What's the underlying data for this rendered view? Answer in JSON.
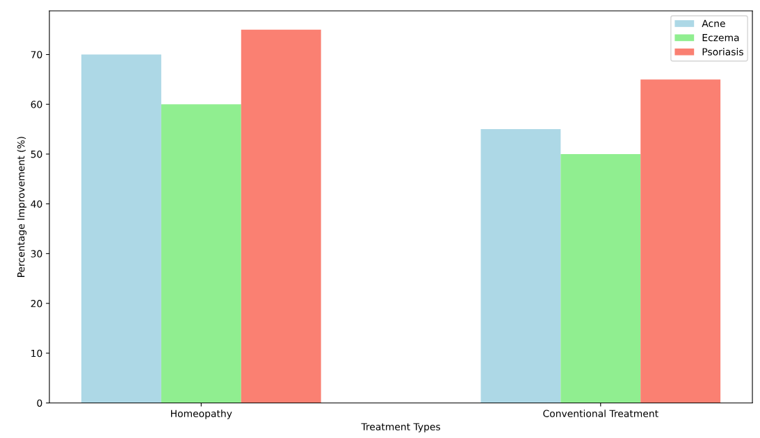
{
  "chart_data": {
    "type": "bar",
    "xlabel": "Treatment Types",
    "ylabel": "Percentage Improvement (%)",
    "categories": [
      "Homeopathy",
      "Conventional Treatment"
    ],
    "series": [
      {
        "name": "Acne",
        "color": "#add8e6",
        "values": [
          70,
          55
        ]
      },
      {
        "name": "Eczema",
        "color": "#90ee90",
        "values": [
          60,
          50
        ]
      },
      {
        "name": "Psoriasis",
        "color": "#fa8072",
        "values": [
          75,
          65
        ]
      }
    ],
    "ylim": [
      0,
      78.75
    ],
    "yticks": [
      0,
      10,
      20,
      30,
      40,
      50,
      60,
      70
    ],
    "grid": false,
    "legend": "top right"
  }
}
